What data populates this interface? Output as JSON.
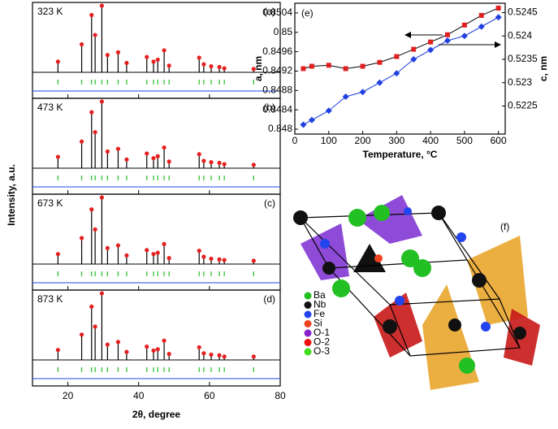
{
  "chart_data": [
    {
      "type": "xrd",
      "label": "323 K",
      "panel": "(a)",
      "xlim": [
        10,
        80
      ],
      "ylim": [
        0,
        100
      ],
      "x": [
        17.2,
        23.9,
        26.7,
        27.7,
        29.6,
        31.2,
        34.2,
        36.6,
        42.3,
        44.2,
        45.4,
        47.2,
        48.6,
        57.1,
        58.4,
        60.5,
        62.8,
        64.2,
        72.5
      ],
      "values": [
        16,
        42,
        86,
        56,
        100,
        26,
        30,
        14,
        23,
        16,
        19,
        33,
        10,
        22,
        12,
        9,
        8,
        6,
        5
      ]
    },
    {
      "type": "xrd",
      "label": "473 K",
      "panel": "(b)",
      "xlim": [
        10,
        80
      ],
      "ylim": [
        0,
        100
      ],
      "x": [
        17.2,
        23.9,
        26.7,
        27.7,
        29.6,
        31.2,
        34.2,
        36.6,
        42.3,
        44.2,
        45.4,
        47.2,
        48.6,
        57.1,
        58.4,
        60.5,
        62.8,
        64.2,
        72.5
      ],
      "values": [
        17,
        40,
        84,
        54,
        100,
        25,
        29,
        13,
        22,
        15,
        18,
        31,
        10,
        21,
        11,
        9,
        8,
        6,
        5
      ]
    },
    {
      "type": "xrd",
      "label": "673 K",
      "panel": "(c)",
      "xlim": [
        10,
        80
      ],
      "ylim": [
        0,
        100
      ],
      "x": [
        17.2,
        23.9,
        26.7,
        27.7,
        29.6,
        31.2,
        34.2,
        36.6,
        42.3,
        44.2,
        45.4,
        47.2,
        48.6,
        57.1,
        58.4,
        60.5,
        62.8,
        64.2,
        72.5
      ],
      "values": [
        15,
        39,
        82,
        52,
        100,
        24,
        28,
        13,
        21,
        15,
        17,
        30,
        9,
        20,
        11,
        8,
        7,
        6,
        5
      ]
    },
    {
      "type": "xrd",
      "label": "873 K",
      "panel": "(d)",
      "xlim": [
        10,
        80
      ],
      "ylim": [
        0,
        100
      ],
      "x": [
        17.2,
        23.9,
        26.7,
        27.7,
        29.6,
        31.2,
        34.2,
        36.6,
        42.3,
        44.2,
        45.4,
        47.2,
        48.6,
        57.1,
        58.4,
        60.5,
        62.8,
        64.2,
        72.5
      ],
      "values": [
        15,
        38,
        80,
        50,
        100,
        23,
        27,
        12,
        20,
        14,
        16,
        29,
        9,
        19,
        10,
        8,
        7,
        5,
        5
      ],
      "xticks": [
        20,
        40,
        60,
        80
      ],
      "xlabel": "2θ, degree",
      "ylabel": "Intensity, a.u."
    },
    {
      "type": "line",
      "panel": "(e)",
      "xlabel": "Temperature, °C",
      "ylabel": "a, nm",
      "y2label": "c, nm",
      "x": [
        25,
        50,
        100,
        150,
        200,
        250,
        300,
        350,
        400,
        450,
        500,
        550,
        600
      ],
      "xlim": [
        0,
        620
      ],
      "xticks": [
        0,
        100,
        200,
        300,
        400,
        500,
        600
      ],
      "ylim": [
        0.8479,
        0.8506
      ],
      "yticks": [
        0.848,
        0.8484,
        0.8488,
        0.8492,
        0.8496,
        0.85,
        0.8504
      ],
      "y2lim": [
        0.5219,
        0.5247
      ],
      "y2ticks": [
        0.5225,
        0.523,
        0.5235,
        0.524,
        0.5245
      ],
      "series": [
        {
          "color": "#e02020",
          "marker": "square",
          "values": [
            0.84925,
            0.8493,
            0.84932,
            0.84925,
            0.8493,
            0.84938,
            0.8495,
            0.84965,
            0.8498,
            0.84995,
            0.85015,
            0.85035,
            0.8505
          ]
        },
        {
          "color": "#2040e0",
          "marker": "diamond",
          "axis": "y2",
          "values": [
            0.5221,
            0.5222,
            0.5224,
            0.5227,
            0.5228,
            0.523,
            0.5232,
            0.5235,
            0.5237,
            0.5239,
            0.524,
            0.5242,
            0.5244
          ]
        }
      ]
    }
  ],
  "structure": {
    "panel": "(f)",
    "legend": [
      {
        "label": "Ba",
        "color": "#22c022"
      },
      {
        "label": "Nb",
        "color": "#111111"
      },
      {
        "label": "Fe",
        "color": "#2244ee"
      },
      {
        "label": "Si",
        "color": "#ee4422"
      },
      {
        "label": "O-1",
        "color": "#8822cc"
      },
      {
        "label": "O-2",
        "color": "#ee1111"
      },
      {
        "label": "O-3",
        "color": "#44dd22"
      }
    ]
  }
}
